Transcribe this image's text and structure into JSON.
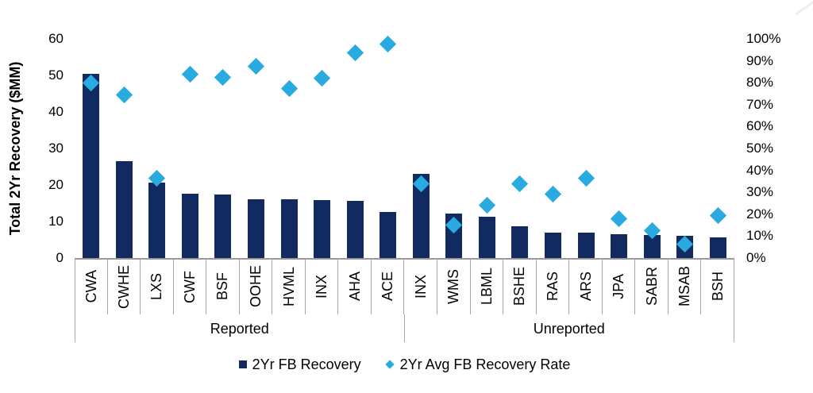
{
  "chart_data": {
    "type": "bar",
    "title": "",
    "categories": [
      "CWA",
      "CWHE",
      "LXS",
      "CWF",
      "BSF",
      "OOHE",
      "HVML",
      "INX",
      "AHA",
      "ACE",
      "INX",
      "WMS",
      "LBML",
      "BSHE",
      "RAS",
      "ARS",
      "JPA",
      "SABR",
      "MSAB",
      "BSH"
    ],
    "category_groups": [
      {
        "label": "Reported",
        "start": 0,
        "count": 10
      },
      {
        "label": "Unreported",
        "start": 10,
        "count": 10
      }
    ],
    "series": [
      {
        "name": "2Yr FB Recovery",
        "kind": "bar",
        "axis": "left",
        "color": "#112a5f",
        "values": [
          50.5,
          26.5,
          20.6,
          17.6,
          17.3,
          16.1,
          16.1,
          15.9,
          15.7,
          12.6,
          23,
          12.2,
          11.2,
          8.8,
          7,
          6.9,
          6.6,
          6.3,
          6,
          5.7
        ]
      },
      {
        "name": "2Yr Avg FB Recovery Rate",
        "kind": "scatter",
        "marker": "diamond",
        "axis": "right",
        "color": "#29abe2",
        "values_percent": [
          80,
          74.5,
          36.5,
          84,
          82.5,
          87.5,
          77.5,
          82,
          93.5,
          97.5,
          34,
          15,
          24,
          34,
          29,
          36.5,
          18,
          12.5,
          6.5,
          19.5
        ]
      }
    ],
    "left_axis": {
      "title": "Total 2Yr Recovery ($MM)",
      "min": 0,
      "max": 60,
      "ticks": [
        60,
        50,
        40,
        30,
        20,
        10,
        0
      ]
    },
    "right_axis": {
      "min": 0,
      "max": 100,
      "ticks": [
        "100%",
        "90%",
        "80%",
        "70%",
        "60%",
        "50%",
        "40%",
        "30%",
        "20%",
        "10%",
        "0%"
      ]
    },
    "grid": false,
    "legend_position": "bottom"
  },
  "legend": {
    "items": [
      {
        "label": "2Yr FB Recovery",
        "marker": "square",
        "color": "#112a5f"
      },
      {
        "label": "2Yr Avg FB Recovery Rate",
        "marker": "diamond",
        "color": "#29abe2"
      }
    ]
  },
  "colors": {
    "bar": "#112a5f",
    "marker": "#29abe2",
    "axis_line": "#9a9a9a",
    "cell_border": "#a6a6a6",
    "text": "#000000",
    "background": "#ffffff"
  }
}
